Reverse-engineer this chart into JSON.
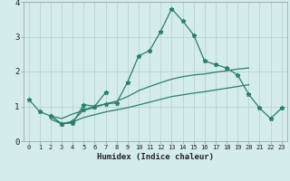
{
  "x": [
    0,
    1,
    2,
    3,
    4,
    5,
    6,
    7,
    8,
    9,
    10,
    11,
    12,
    13,
    14,
    15,
    16,
    17,
    18,
    19,
    20,
    21,
    22,
    23
  ],
  "line1": [
    1.2,
    0.85,
    0.72,
    0.5,
    0.52,
    1.05,
    1.0,
    1.07,
    1.1,
    1.7,
    2.45,
    2.6,
    3.15,
    3.8,
    3.45,
    3.05,
    2.3,
    2.2,
    2.1,
    1.9,
    1.35,
    0.95,
    0.65,
    0.95
  ],
  "line2": [
    null,
    null,
    0.72,
    0.5,
    0.57,
    0.9,
    1.0,
    1.4,
    null,
    null,
    null,
    null,
    null,
    null,
    null,
    null,
    null,
    null,
    null,
    null,
    null,
    null,
    null,
    null
  ],
  "line3": [
    null,
    null,
    0.72,
    0.65,
    0.78,
    0.88,
    0.97,
    1.07,
    1.15,
    1.28,
    1.45,
    1.57,
    1.68,
    1.78,
    1.85,
    1.9,
    1.93,
    1.98,
    2.02,
    2.07,
    2.1,
    null,
    null,
    null
  ],
  "line4": [
    null,
    null,
    0.63,
    0.5,
    0.55,
    0.68,
    0.76,
    0.84,
    0.9,
    0.96,
    1.04,
    1.12,
    1.2,
    1.28,
    1.33,
    1.38,
    1.42,
    1.47,
    1.52,
    1.57,
    1.62,
    null,
    null,
    null
  ],
  "background_color": "#d4ecec",
  "grid_color": "#b8d4d4",
  "line_color": "#2d7d6e",
  "xlabel": "Humidex (Indice chaleur)",
  "ylim": [
    0,
    4
  ],
  "xlim": [
    -0.5,
    23.5
  ]
}
